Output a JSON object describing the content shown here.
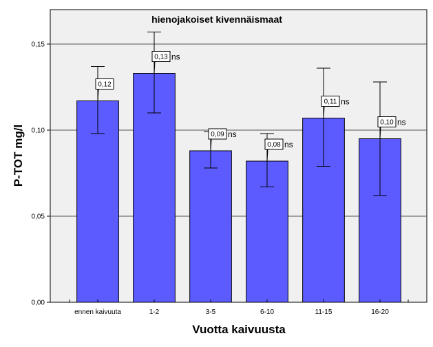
{
  "chart_data": {
    "type": "bar",
    "title": "hienojakoiset kivennäismaat",
    "xlabel": "Vuotta kaivuusta",
    "ylabel": "P-TOT mg/l",
    "ylim": [
      0,
      0.17
    ],
    "yticks": [
      "0,00",
      "0,05",
      "0,10",
      "0,15"
    ],
    "ytick_values": [
      0,
      0.05,
      0.1,
      0.15
    ],
    "grid": true,
    "categories": [
      "ennen kaivuuta",
      "1-2",
      "3-5",
      "6-10",
      "11-15",
      "16-20"
    ],
    "values": [
      0.117,
      0.133,
      0.088,
      0.082,
      0.107,
      0.095
    ],
    "error_low": [
      0.098,
      0.11,
      0.078,
      0.067,
      0.079,
      0.062
    ],
    "error_high": [
      0.137,
      0.157,
      0.099,
      0.098,
      0.136,
      0.128
    ],
    "data_labels": [
      "0,12",
      "0,13",
      "0,09",
      "0,08",
      "0,11",
      "0,10"
    ],
    "annotations": [
      "",
      "ns",
      "ns",
      "ns",
      "ns",
      "ns"
    ],
    "colors": {
      "bar": "#5b5bff",
      "bar_edge": "#000000",
      "plot_bg": "#f0f0f0",
      "grid": "#555555"
    }
  }
}
